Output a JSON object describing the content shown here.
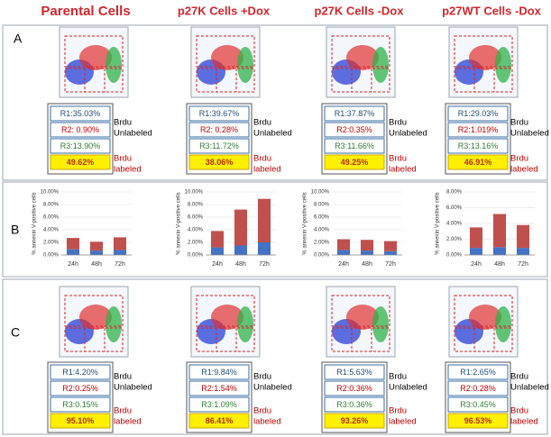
{
  "figure": {
    "column_titles": [
      "Parental Cells",
      "p27K Cells +Dox",
      "p27K Cells -Dox",
      "p27WT Cells -Dox"
    ],
    "panel_letters": [
      "A",
      "B",
      "C"
    ],
    "unlabeled_label": [
      "Brdu",
      "Unlabeled"
    ],
    "labeled_label": [
      "Brdu",
      "labeled"
    ],
    "flow_tables": {
      "A": [
        [
          "R1:35.03%",
          "R2:  0.90%",
          "R3:13.90%",
          "49.62%"
        ],
        [
          "R1:39.67%",
          "R2:  0.28%",
          "R3:11.72%",
          "38.06%"
        ],
        [
          "R1:37.87%",
          "R2:0.35%",
          "R3:11.66%",
          "49.25%"
        ],
        [
          "R1:29.03%",
          "R2:1.019%",
          "R3:13.16%",
          "46.91%"
        ]
      ],
      "C": [
        [
          "R1:4.20%",
          "R2:0.25%",
          "R3:0.15%",
          "95.10%"
        ],
        [
          "R1:9.84%",
          "R2:1.54%",
          "R3:1.09%",
          "86.41%"
        ],
        [
          "R1:5.63%",
          "R2:0.36%",
          "R3:0.36%",
          "93.26%"
        ],
        [
          "R1:2.65%",
          "R2:0.28%",
          "R3:0.45%",
          "96.53%"
        ]
      ]
    }
  },
  "chart_data": [
    {
      "type": "bar",
      "stacked": true,
      "ylabel": "% annexin V-positive cells",
      "categories": [
        "24h",
        "48h",
        "72h"
      ],
      "series": [
        {
          "color": "#4472c4",
          "values": [
            0.9,
            0.7,
            0.8
          ]
        },
        {
          "color": "#c0504d",
          "values": [
            1.8,
            1.4,
            2.0
          ]
        }
      ],
      "ylim": [
        0,
        10
      ],
      "yticks": [
        {
          "value": 0,
          "label": "0.00%"
        },
        {
          "value": 2,
          "label": "2.00%"
        },
        {
          "value": 4,
          "label": "4.00%"
        },
        {
          "value": 6,
          "label": "6.00%"
        },
        {
          "value": 8,
          "label": "8.00%"
        },
        {
          "value": 10,
          "label": "10.00%"
        }
      ]
    },
    {
      "type": "bar",
      "stacked": true,
      "ylabel": "% annexin V-positive cells",
      "categories": [
        "24h",
        "48h",
        "72h"
      ],
      "series": [
        {
          "color": "#4472c4",
          "values": [
            1.2,
            1.5,
            2.0
          ]
        },
        {
          "color": "#c0504d",
          "values": [
            2.6,
            5.7,
            6.9
          ]
        }
      ],
      "ylim": [
        0,
        10
      ],
      "yticks": [
        {
          "value": 0,
          "label": "0.00%"
        },
        {
          "value": 2,
          "label": "2.00%"
        },
        {
          "value": 4,
          "label": "4.00%"
        },
        {
          "value": 6,
          "label": "6.00%"
        },
        {
          "value": 8,
          "label": "8.00%"
        },
        {
          "value": 10,
          "label": "10.00%"
        }
      ]
    },
    {
      "type": "bar",
      "stacked": true,
      "ylabel": "% annexin V-positive cells",
      "categories": [
        "24h",
        "48h",
        "72h"
      ],
      "series": [
        {
          "color": "#4472c4",
          "values": [
            0.8,
            0.7,
            0.6
          ]
        },
        {
          "color": "#c0504d",
          "values": [
            1.7,
            1.7,
            1.6
          ]
        }
      ],
      "ylim": [
        0,
        10
      ],
      "yticks": [
        {
          "value": 0,
          "label": "0.00%"
        },
        {
          "value": 2,
          "label": "2.00%"
        },
        {
          "value": 4,
          "label": "4.00%"
        },
        {
          "value": 6,
          "label": "6.00%"
        },
        {
          "value": 8,
          "label": "8.00%"
        },
        {
          "value": 10,
          "label": "10.00%"
        }
      ]
    },
    {
      "type": "bar",
      "stacked": true,
      "ylabel": "% annexin V-positive cells",
      "categories": [
        "24h",
        "48h",
        "72h"
      ],
      "series": [
        {
          "color": "#4472c4",
          "values": [
            0.9,
            1.0,
            0.9
          ]
        },
        {
          "color": "#c0504d",
          "values": [
            2.6,
            4.2,
            2.9
          ]
        }
      ],
      "ylim": [
        0,
        8
      ],
      "yticks": [
        {
          "value": 0,
          "label": "0.00%"
        },
        {
          "value": 2,
          "label": "2.00%"
        },
        {
          "value": 4,
          "label": "4.00%"
        },
        {
          "value": 6,
          "label": "6.00%"
        },
        {
          "value": 8,
          "label": "8.00%"
        }
      ]
    }
  ]
}
